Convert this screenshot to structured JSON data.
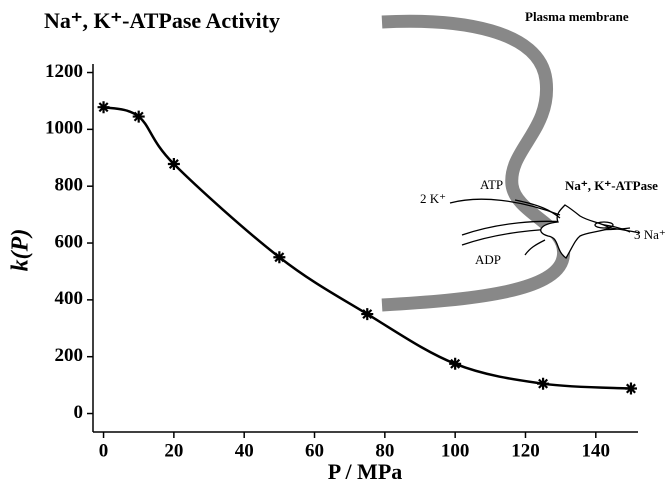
{
  "chart_data": {
    "type": "scatter",
    "title": "Na⁺, K⁺-ATPase Activity",
    "x_label": "P / MPa",
    "y_label": "k(P)",
    "x": [
      0,
      10,
      20,
      50,
      75,
      100,
      125,
      150
    ],
    "values": [
      1078,
      1045,
      878,
      550,
      350,
      175,
      105,
      88
    ],
    "color": "#000000",
    "xlim": [
      -3,
      152
    ],
    "ylim": [
      -65,
      1230
    ],
    "xticks": [
      0,
      20,
      40,
      60,
      80,
      100,
      120,
      140
    ],
    "yticks": [
      0,
      200,
      400,
      600,
      800,
      1000,
      1200
    ],
    "annotations": [
      "Plasma membrane",
      "Na⁺, K⁺-ATPase",
      "ATP",
      "ADP",
      "2 K⁺",
      "3 Na⁺"
    ]
  }
}
